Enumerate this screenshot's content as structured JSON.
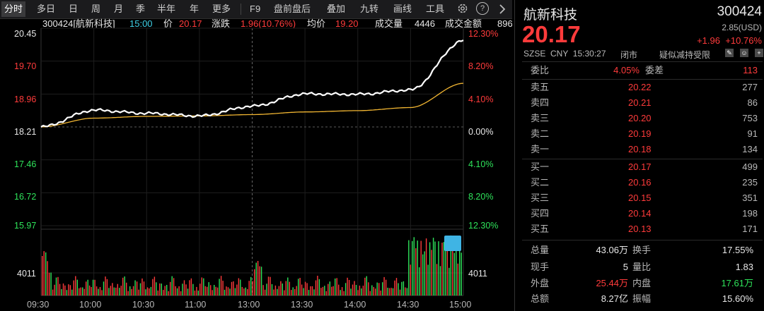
{
  "toolbar": {
    "items": [
      "分时",
      "多日",
      "日",
      "周",
      "月",
      "季",
      "半年",
      "年",
      "更多",
      "F9",
      "盘前盘后",
      "叠加",
      "九转",
      "画线",
      "工具"
    ],
    "active": "分时",
    "help_glyph": "?",
    "icons": [
      "gear-icon",
      "help-icon",
      "chevron-right-icon"
    ]
  },
  "info": {
    "code_name": "300424[航新科技]",
    "time": "15:00",
    "price_label": "价",
    "price": "20.17",
    "change_label": "涨跌",
    "change": "1.96(10.76%)",
    "avg_label": "均价",
    "avg": "19.20",
    "vol_label": "成交量",
    "vol": "4446",
    "amount_label": "成交金额",
    "amount": "896"
  },
  "axes": {
    "price_ticks": [
      "20.45",
      "19.70",
      "18.96",
      "18.21",
      "17.46",
      "16.72",
      "15.97"
    ],
    "pct_ticks": [
      "12.30%",
      "8.20%",
      "4.10%",
      "0.00%",
      "4.10%",
      "8.20%",
      "12.30%"
    ],
    "vol_tick": "4011",
    "time_ticks": [
      "09:30",
      "10:00",
      "10:30",
      "11:00",
      "13:00",
      "13:30",
      "14:00",
      "14:30",
      "15:00"
    ]
  },
  "chart_data": {
    "type": "line",
    "x": [
      "09:30",
      "10:00",
      "10:30",
      "11:00",
      "11:30/13:00",
      "13:30",
      "14:00",
      "14:30",
      "15:00"
    ],
    "series": [
      {
        "values": [
          18.21,
          18.59,
          18.52,
          18.46,
          18.68,
          18.96,
          18.95,
          19.05,
          20.17
        ]
      },
      {
        "values": [
          18.21,
          18.41,
          18.45,
          18.46,
          18.49,
          18.55,
          18.58,
          18.65,
          19.2
        ]
      }
    ],
    "ylim": [
      15.97,
      20.45
    ],
    "reference_price": 18.21,
    "volume_tick": 4011
  },
  "panel": {
    "name": "航新科技",
    "code": "300424",
    "price": "20.17",
    "usd": "2.85(USD)",
    "change": "+1.96",
    "change_pct": "+10.76%",
    "meta": "SZSE  CNY  15:30:27",
    "status": "闭市",
    "note": "疑似减持受限",
    "weibi_label": "委比",
    "weibi_val": "4.05%",
    "weicha_label": "委差",
    "weicha_val": "113",
    "asks": [
      {
        "label": "卖五",
        "price": "20.22",
        "vol": "277"
      },
      {
        "label": "卖四",
        "price": "20.21",
        "vol": "86"
      },
      {
        "label": "卖三",
        "price": "20.20",
        "vol": "753"
      },
      {
        "label": "卖二",
        "price": "20.19",
        "vol": "91"
      },
      {
        "label": "卖一",
        "price": "20.18",
        "vol": "134"
      }
    ],
    "bids": [
      {
        "label": "买一",
        "price": "20.17",
        "vol": "499"
      },
      {
        "label": "买二",
        "price": "20.16",
        "vol": "235"
      },
      {
        "label": "买三",
        "price": "20.15",
        "vol": "351"
      },
      {
        "label": "买四",
        "price": "20.14",
        "vol": "198"
      },
      {
        "label": "买五",
        "price": "20.13",
        "vol": "171"
      }
    ],
    "stats": [
      {
        "l1": "总量",
        "v1": "43.06万",
        "l2": "换手",
        "v2": "17.55%"
      },
      {
        "l1": "现手",
        "v1": "5",
        "l2": "量比",
        "v2": "1.83"
      },
      {
        "l1": "外盘",
        "v1": "25.44万",
        "l2": "内盘",
        "v2": "17.61万"
      },
      {
        "l1": "总额",
        "v1": "8.27亿",
        "l2": "振幅",
        "v2": "15.60%"
      }
    ]
  },
  "colors": {
    "up": "#ff3b3b",
    "down": "#2ee35a",
    "price_line": "#ffffff",
    "avg_line": "#f2b632",
    "background": "#000000"
  }
}
